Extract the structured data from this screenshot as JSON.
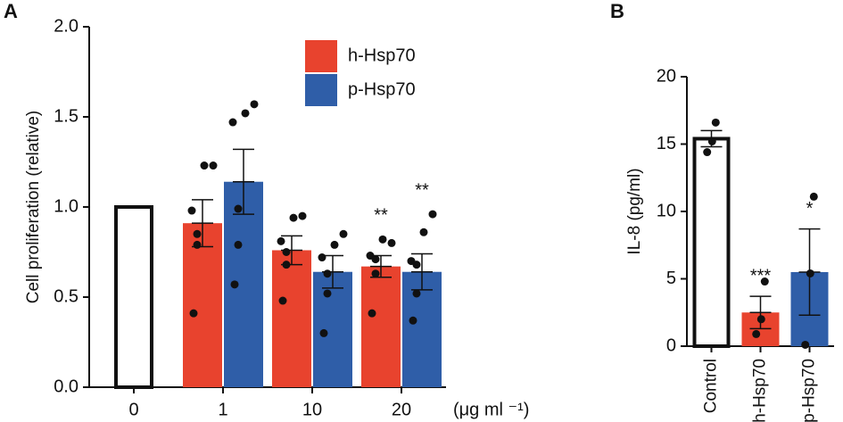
{
  "chart_data": [
    {
      "type": "bar",
      "panel": "A",
      "ylabel": "Cell proliferation (relative)",
      "xlabel": "(μg ml ⁻¹)",
      "categories": [
        "0",
        "1",
        "10",
        "20"
      ],
      "ylim": [
        0,
        2
      ],
      "yticks": [
        {
          "value": 0,
          "label": "0.0"
        },
        0.5,
        {
          "value": 1,
          "label": "1.0"
        },
        1.5,
        {
          "value": 2,
          "label": "2.0"
        }
      ],
      "series": [
        {
          "color": "#ffffff",
          "values": [
            1,
            null,
            null,
            null
          ]
        },
        {
          "name": "h-Hsp70",
          "color": "#e8432e",
          "values": [
            null,
            0.91,
            0.76,
            0.67
          ],
          "errors": [
            null,
            0.13,
            0.08,
            0.06
          ],
          "points": [
            null,
            [
              1.23,
              1.23,
              0.98,
              0.85,
              0.79,
              0.41
            ],
            [
              0.95,
              0.94,
              0.81,
              0.75,
              0.68,
              0.48
            ],
            [
              0.8,
              0.82,
              0.73,
              0.71,
              0.63,
              0.41
            ]
          ],
          "significance": [
            null,
            null,
            null,
            "**"
          ]
        },
        {
          "name": "p-Hsp70",
          "color": "#2f5ea8",
          "values": [
            null,
            1.14,
            0.64,
            0.64
          ],
          "errors": [
            null,
            0.18,
            0.09,
            0.1
          ],
          "points": [
            null,
            [
              1.57,
              1.52,
              1.47,
              0.99,
              0.79,
              0.57
            ],
            [
              0.85,
              0.79,
              0.72,
              0.63,
              0.52,
              0.3
            ],
            [
              0.96,
              0.86,
              0.7,
              0.68,
              0.52,
              0.37
            ]
          ],
          "significance": [
            null,
            null,
            null,
            "**"
          ]
        }
      ]
    },
    {
      "type": "bar",
      "panel": "B",
      "ylabel": "IL-8 (pg/ml)",
      "categories": [
        "Control",
        "h-Hsp70",
        "p-Hsp70"
      ],
      "ylim": [
        0,
        20
      ],
      "yticks": [
        0,
        5,
        10,
        15,
        20
      ],
      "series": [
        {
          "colors": [
            "#ffffff",
            "#e8432e",
            "#2f5ea8"
          ],
          "values": [
            15.4,
            2.5,
            5.5
          ],
          "errors": [
            0.6,
            1.2,
            3.2
          ],
          "points": [
            [
              16.6,
              15.2,
              14.4
            ],
            [
              4.8,
              2.0,
              0.9
            ],
            [
              11.1,
              5.4,
              0.1
            ]
          ],
          "significance": [
            null,
            "***",
            "*"
          ]
        }
      ]
    }
  ]
}
